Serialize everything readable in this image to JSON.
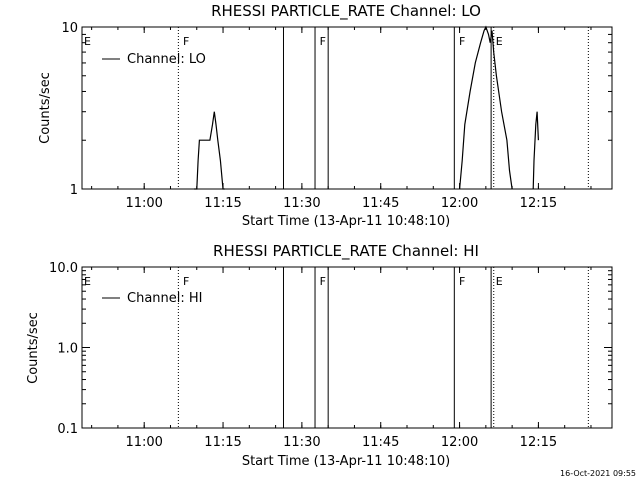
{
  "footer": {
    "timestamp": "16-Oct-2021 09:55"
  },
  "chart_data": [
    {
      "type": "line",
      "title": "RHESSI PARTICLE_RATE Channel: LO",
      "xlabel": "Start Time (13-Apr-11 10:48:10)",
      "ylabel": "Counts/sec",
      "yscale": "log",
      "ylim": [
        1,
        10
      ],
      "ytick_labels": [
        "10",
        "1"
      ],
      "xlim": [
        "10:48:10",
        "12:29:00"
      ],
      "xtick_labels": [
        "11:00",
        "11:15",
        "11:30",
        "11:45",
        "12:00",
        "12:15"
      ],
      "legend": {
        "label": "Channel: LO",
        "placement": "top-left"
      },
      "flag_labels": [
        {
          "text": "E",
          "time": "10:48:10"
        },
        {
          "text": "F",
          "time": "11:07:00"
        },
        {
          "text": "F",
          "time": "11:33:00"
        },
        {
          "text": "F",
          "time": "11:59:30"
        },
        {
          "text": "E",
          "time": "12:06:30"
        }
      ],
      "solid_lines": [
        "11:26:30",
        "11:32:30",
        "11:35:00",
        "11:59:00",
        "12:06:00"
      ],
      "dotted_lines": [
        "11:06:30",
        "12:06:30",
        "12:24:30"
      ],
      "series": [
        {
          "segments": [
            [
              [
                "11:09:30",
                0.9
              ],
              [
                "11:10:00",
                1.0
              ],
              [
                "11:10:15",
                1.5
              ],
              [
                "11:10:30",
                2.0
              ],
              [
                "11:12:30",
                2.0
              ],
              [
                "11:13:00",
                2.5
              ],
              [
                "11:13:20",
                3.0
              ],
              [
                "11:13:40",
                2.5
              ],
              [
                "11:14:00",
                2.0
              ],
              [
                "11:14:30",
                1.5
              ],
              [
                "11:15:00",
                1.0
              ],
              [
                "11:15:20",
                0.9
              ]
            ],
            [
              [
                "12:00:00",
                0.9
              ],
              [
                "12:00:30",
                1.5
              ],
              [
                "12:01:00",
                2.5
              ],
              [
                "12:02:00",
                4.0
              ],
              [
                "12:03:00",
                6.0
              ],
              [
                "12:04:00",
                8.0
              ],
              [
                "12:04:40",
                9.5
              ],
              [
                "12:05:00",
                10.0
              ],
              [
                "12:05:30",
                9.0
              ],
              [
                "12:05:50",
                8.0
              ],
              [
                "12:06:10",
                9.5
              ],
              [
                "12:06:30",
                7.0
              ],
              [
                "12:07:00",
                5.0
              ],
              [
                "12:08:00",
                3.0
              ],
              [
                "12:09:00",
                2.0
              ],
              [
                "12:09:30",
                1.3
              ],
              [
                "12:10:00",
                0.9
              ]
            ],
            [
              [
                "12:14:00",
                0.9
              ],
              [
                "12:14:10",
                1.5
              ],
              [
                "12:14:30",
                2.5
              ],
              [
                "12:14:45",
                3.0
              ],
              [
                "12:15:00",
                2.0
              ]
            ]
          ]
        }
      ]
    },
    {
      "type": "line",
      "title": "RHESSI PARTICLE_RATE Channel: HI",
      "xlabel": "Start Time (13-Apr-11 10:48:10)",
      "ylabel": "Counts/sec",
      "yscale": "log",
      "ylim": [
        0.1,
        10
      ],
      "ytick_labels": [
        "10.0",
        "1.0",
        "0.1"
      ],
      "xlim": [
        "10:48:10",
        "12:29:00"
      ],
      "xtick_labels": [
        "11:00",
        "11:15",
        "11:30",
        "11:45",
        "12:00",
        "12:15"
      ],
      "legend": {
        "label": "Channel: HI",
        "placement": "top-left"
      },
      "flag_labels": [
        {
          "text": "E",
          "time": "10:48:10"
        },
        {
          "text": "F",
          "time": "11:07:00"
        },
        {
          "text": "F",
          "time": "11:33:00"
        },
        {
          "text": "F",
          "time": "11:59:30"
        },
        {
          "text": "E",
          "time": "12:06:30"
        }
      ],
      "solid_lines": [
        "11:26:30",
        "11:32:30",
        "11:35:00",
        "11:59:00",
        "12:06:00"
      ],
      "dotted_lines": [
        "11:06:30",
        "12:06:30",
        "12:24:30"
      ],
      "series": [
        {
          "segments": []
        }
      ]
    }
  ]
}
